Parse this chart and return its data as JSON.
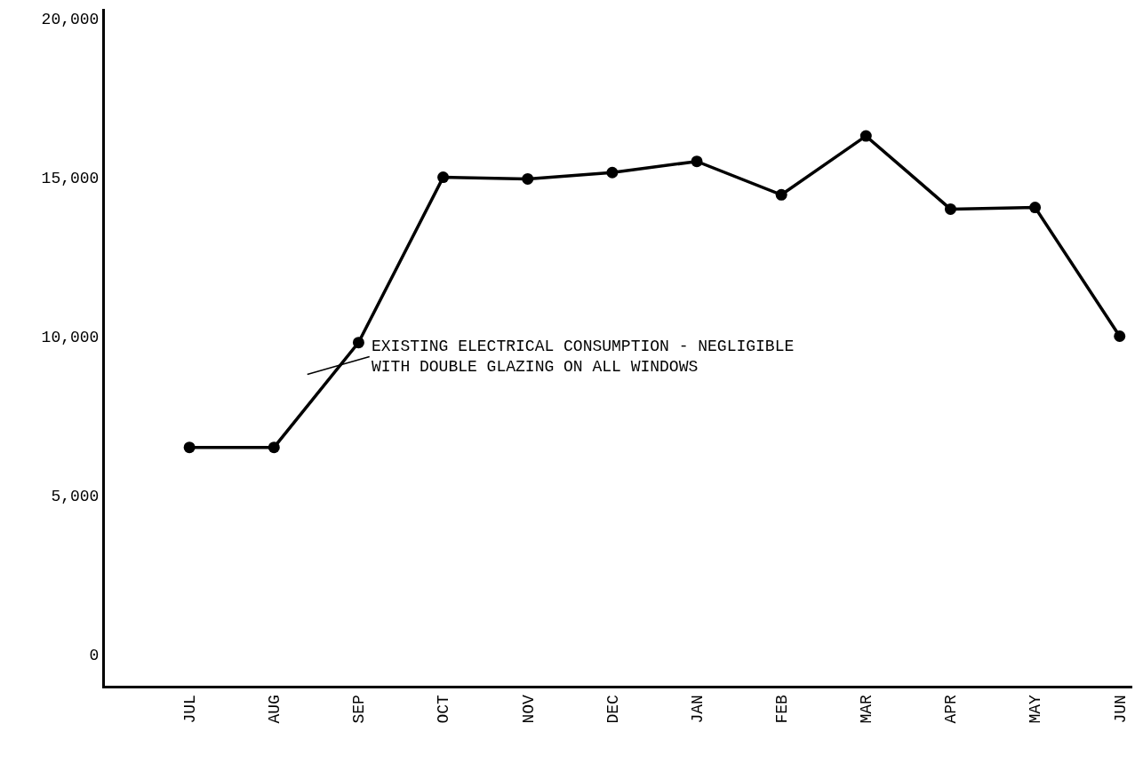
{
  "chart_data": {
    "type": "line",
    "categories": [
      "JUL",
      "AUG",
      "SEP",
      "OCT",
      "NOV",
      "DEC",
      "JAN",
      "FEB",
      "MAR",
      "APR",
      "MAY",
      "JUN"
    ],
    "series": [
      {
        "color": "#000000",
        "values": [
          6500,
          6500,
          9800,
          15000,
          14950,
          15150,
          15500,
          14450,
          16300,
          14000,
          14050,
          10000
        ]
      }
    ],
    "ylim": [
      -1000,
      20300
    ],
    "yticks": [
      {
        "value": 0,
        "label": "0"
      },
      {
        "value": 5000,
        "label": "5,000"
      },
      {
        "value": 10000,
        "label": "10,000"
      },
      {
        "value": 15000,
        "label": "15,000"
      },
      {
        "value": 20000,
        "label": "20,000"
      }
    ],
    "annotations": [
      "EXISTING ELECTRICAL CONSUMPTION - NEGLIGIBLE\nWITH DOUBLE GLAZING ON ALL WINDOWS"
    ],
    "marker": "circle",
    "line_style": "solid"
  }
}
